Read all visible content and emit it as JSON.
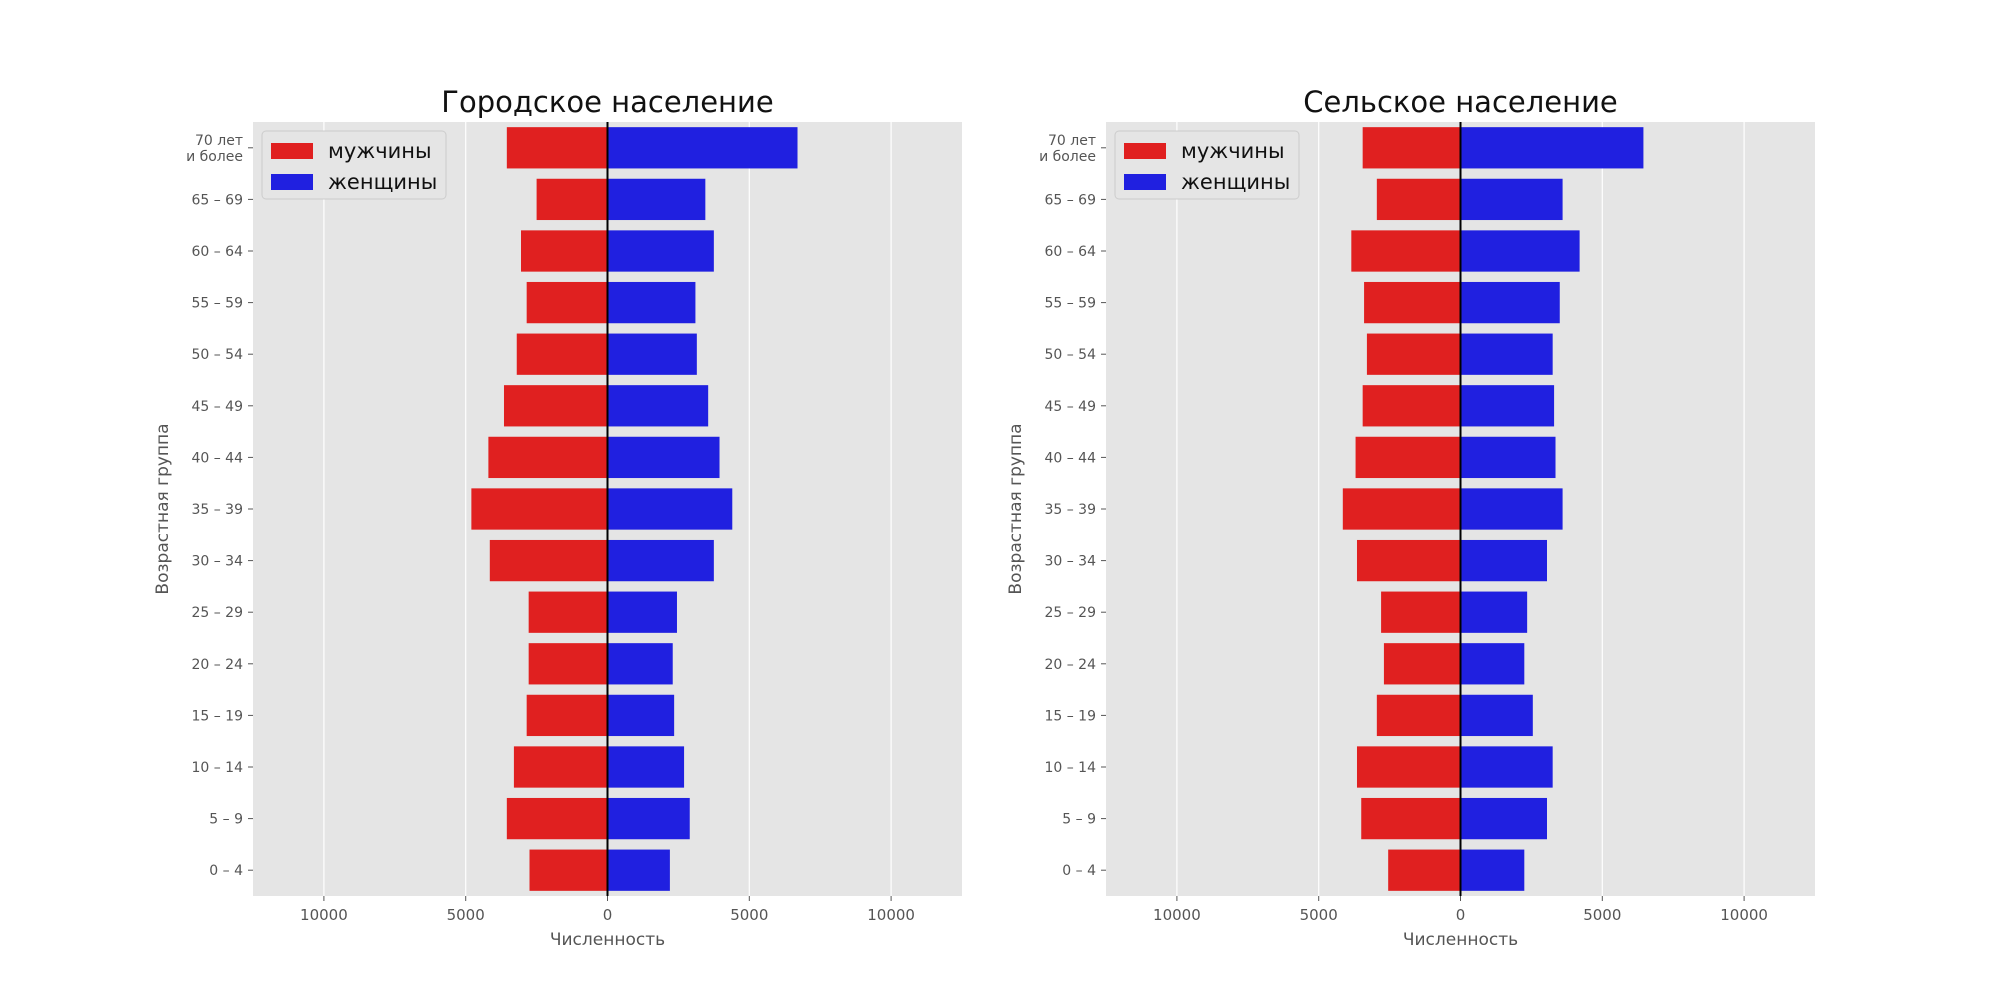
{
  "chart_data": [
    {
      "type": "bar",
      "orientation": "horizontal",
      "title": "Городское население",
      "xlabel": "Численность",
      "ylabel": "Возрастная группа",
      "xlim": [
        -12500,
        12500
      ],
      "xticks": [
        -10000,
        -5000,
        0,
        5000,
        10000
      ],
      "xtick_labels": [
        "10000",
        "5000",
        "0",
        "5000",
        "10000"
      ],
      "grid": true,
      "legend_position": "top-left",
      "categories": [
        "0 – 4",
        "5 – 9",
        "10 – 14",
        "15 – 19",
        "20 – 24",
        "25 – 29",
        "30 – 34",
        "35 – 39",
        "40 – 44",
        "45 – 49",
        "50 – 54",
        "55 – 59",
        "60 – 64",
        "65 – 69",
        "70 лет\nи более"
      ],
      "series": [
        {
          "name": "мужчины",
          "color": "#e02020",
          "values": [
            -2750,
            -3550,
            -3300,
            -2850,
            -2780,
            -2780,
            -4150,
            -4800,
            -4200,
            -3650,
            -3200,
            -2850,
            -3050,
            -2500,
            -3550
          ]
        },
        {
          "name": "женщины",
          "color": "#2020e0",
          "values": [
            2200,
            2900,
            2700,
            2350,
            2300,
            2450,
            3750,
            4400,
            3950,
            3550,
            3150,
            3100,
            3750,
            3450,
            6700
          ]
        }
      ]
    },
    {
      "type": "bar",
      "orientation": "horizontal",
      "title": "Сельское население",
      "xlabel": "Численность",
      "ylabel": "Возрастная группа",
      "xlim": [
        -12500,
        12500
      ],
      "xticks": [
        -10000,
        -5000,
        0,
        5000,
        10000
      ],
      "xtick_labels": [
        "10000",
        "5000",
        "0",
        "5000",
        "10000"
      ],
      "grid": true,
      "legend_position": "top-left",
      "categories": [
        "0 – 4",
        "5 – 9",
        "10 – 14",
        "15 – 19",
        "20 – 24",
        "25 – 29",
        "30 – 34",
        "35 – 39",
        "40 – 44",
        "45 – 49",
        "50 – 54",
        "55 – 59",
        "60 – 64",
        "65 – 69",
        "70 лет\nи более"
      ],
      "series": [
        {
          "name": "мужчины",
          "color": "#e02020",
          "values": [
            -2550,
            -3500,
            -3650,
            -2950,
            -2700,
            -2800,
            -3650,
            -4150,
            -3700,
            -3450,
            -3300,
            -3400,
            -3850,
            -2950,
            -3450
          ]
        },
        {
          "name": "женщины",
          "color": "#2020e0",
          "values": [
            2250,
            3050,
            3250,
            2550,
            2250,
            2350,
            3050,
            3600,
            3350,
            3300,
            3250,
            3500,
            4200,
            3600,
            6450
          ]
        }
      ]
    }
  ]
}
